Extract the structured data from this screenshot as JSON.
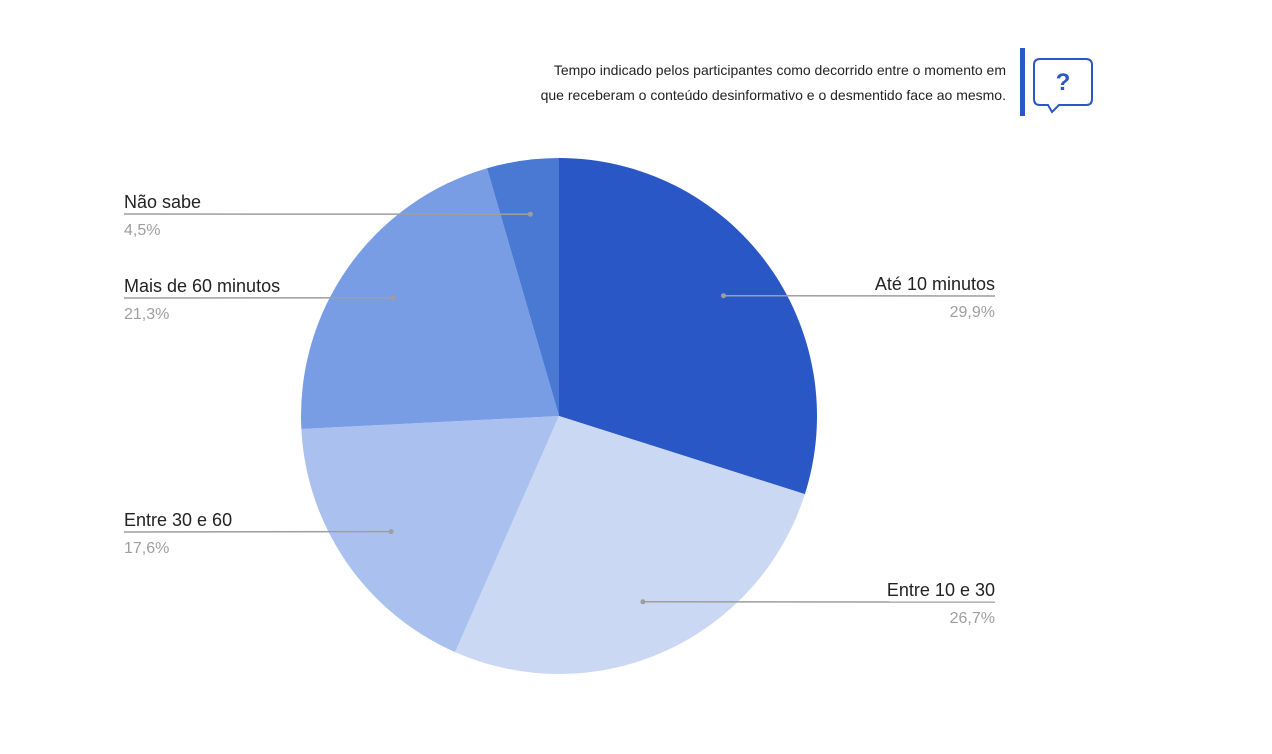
{
  "note": {
    "line1": "Tempo indicado pelos participantes como decorrido entre o momento em",
    "line2": "que receberam o conteúdo desinformativo e o desmentido face ao mesmo.",
    "help_icon": "question-speech-bubble-icon",
    "help_glyph": "?"
  },
  "colors": {
    "accent": "#2a56c6",
    "leader_line": "#9e9e9e",
    "label_text": "#222222",
    "percent_text": "#9e9e9e"
  },
  "chart_data": {
    "type": "pie",
    "start_angle": "12 o'clock",
    "direction": "clockwise",
    "slices": [
      {
        "label": "Até 10 minutos",
        "value": 29.9,
        "display": "29,9%",
        "color": "#2957c5",
        "label_side": "right"
      },
      {
        "label": "Entre 10 e 30",
        "value": 26.7,
        "display": "26,7%",
        "color": "#cbd8f4",
        "label_side": "right"
      },
      {
        "label": "Entre 30 e 60",
        "value": 17.6,
        "display": "17,6%",
        "color": "#aac1f0",
        "label_side": "left"
      },
      {
        "label": "Mais de 60 minutos",
        "value": 21.3,
        "display": "21,3%",
        "color": "#789de5",
        "label_side": "left"
      },
      {
        "label": "Não sabe",
        "value": 4.5,
        "display": "4,5%",
        "color": "#4a79d4",
        "label_side": "left"
      }
    ]
  }
}
